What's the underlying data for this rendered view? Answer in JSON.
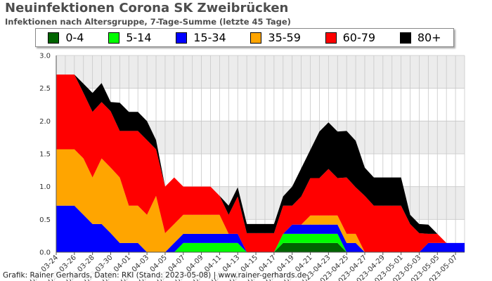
{
  "title": "Neuinfektionen Corona SK Zweibrücken",
  "subtitle": "Infektionen nach Altersgruppe, 7-Tage-Summe (letzte 45 Tage)",
  "credit": "Grafik: Rainer Gerhards, Daten: RKI (Stand: 2023-05-08) | www.rainer-gerhards.de",
  "legend": [
    {
      "label": "0-4",
      "color": "#006400"
    },
    {
      "label": "5-14",
      "color": "#00ff00"
    },
    {
      "label": "15-34",
      "color": "#0000ff"
    },
    {
      "label": "35-59",
      "color": "#ffa500"
    },
    {
      "label": "60-79",
      "color": "#ff0000"
    },
    {
      "label": "80+",
      "color": "#000000"
    }
  ],
  "chart_data": {
    "type": "area",
    "stacked": true,
    "title": "Neuinfektionen Corona SK Zweibrücken",
    "subtitle": "Infektionen nach Altersgruppe, 7-Tage-Summe (letzte 45 Tage)",
    "xlabel": "",
    "ylabel": "",
    "ylim": [
      0,
      3.0
    ],
    "yticks": [
      "0.0",
      "0.5",
      "1.0",
      "1.5",
      "2.0",
      "2.5",
      "3.0"
    ],
    "xticks": [
      "2023-03-24",
      "2023-03-26",
      "2023-03-28",
      "2023-03-30",
      "2023-04-01",
      "2023-04-03",
      "2023-04-05",
      "2023-04-07",
      "2023-04-09",
      "2023-04-11",
      "2023-04-13",
      "2023-04-15",
      "2023-04-17",
      "2023-04-19",
      "2023-04-21",
      "2023-04-23",
      "2023-04-25",
      "2023-04-27",
      "2023-04-29",
      "2023-05-01",
      "2023-05-03",
      "2023-05-05",
      "2023-05-07"
    ],
    "x": [
      "2023-03-24",
      "2023-03-25",
      "2023-03-26",
      "2023-03-27",
      "2023-03-28",
      "2023-03-29",
      "2023-03-30",
      "2023-03-31",
      "2023-04-01",
      "2023-04-02",
      "2023-04-03",
      "2023-04-04",
      "2023-04-05",
      "2023-04-06",
      "2023-04-07",
      "2023-04-08",
      "2023-04-09",
      "2023-04-10",
      "2023-04-11",
      "2023-04-12",
      "2023-04-13",
      "2023-04-14",
      "2023-04-15",
      "2023-04-16",
      "2023-04-17",
      "2023-04-18",
      "2023-04-19",
      "2023-04-20",
      "2023-04-21",
      "2023-04-22",
      "2023-04-23",
      "2023-04-24",
      "2023-04-25",
      "2023-04-26",
      "2023-04-27",
      "2023-04-28",
      "2023-04-29",
      "2023-04-30",
      "2023-05-01",
      "2023-05-02",
      "2023-05-03",
      "2023-05-04",
      "2023-05-05",
      "2023-05-06",
      "2023-05-07",
      "2023-05-08"
    ],
    "grid": true,
    "legend_position": "top",
    "series": [
      {
        "name": "0-4",
        "color": "#006400",
        "values": [
          0,
          0,
          0,
          0,
          0,
          0,
          0,
          0,
          0,
          0,
          0,
          0,
          0,
          0,
          0,
          0,
          0,
          0,
          0,
          0,
          0,
          0,
          0,
          0,
          0,
          0.14,
          0.14,
          0.14,
          0.14,
          0.14,
          0.14,
          0.14,
          0,
          0,
          0,
          0,
          0,
          0,
          0,
          0,
          0,
          0,
          0,
          0,
          0,
          0
        ]
      },
      {
        "name": "5-14",
        "color": "#00ff00",
        "values": [
          0,
          0,
          0,
          0,
          0,
          0,
          0,
          0,
          0,
          0,
          0,
          0,
          0,
          0,
          0.14,
          0.14,
          0.14,
          0.14,
          0.14,
          0.14,
          0.14,
          0,
          0,
          0,
          0,
          0.14,
          0.14,
          0.14,
          0.14,
          0.14,
          0.14,
          0.14,
          0,
          0,
          0,
          0,
          0,
          0,
          0,
          0,
          0,
          0,
          0,
          0,
          0,
          0
        ]
      },
      {
        "name": "15-34",
        "color": "#0000ff",
        "values": [
          0.71,
          0.71,
          0.71,
          0.57,
          0.43,
          0.43,
          0.29,
          0.14,
          0.14,
          0.14,
          0,
          0,
          0,
          0.14,
          0.14,
          0.14,
          0.14,
          0.14,
          0.14,
          0.14,
          0.14,
          0,
          0,
          0,
          0,
          0,
          0.14,
          0.14,
          0.14,
          0.14,
          0.14,
          0.14,
          0.14,
          0.14,
          0,
          0,
          0,
          0,
          0,
          0,
          0,
          0.14,
          0.14,
          0.14,
          0.14,
          0.14
        ]
      },
      {
        "name": "35-59",
        "color": "#ffa500",
        "values": [
          0.86,
          0.86,
          0.86,
          0.86,
          0.71,
          1.0,
          1.0,
          1.0,
          0.57,
          0.57,
          0.57,
          0.86,
          0.29,
          0.29,
          0.29,
          0.29,
          0.29,
          0.29,
          0.29,
          0,
          0,
          0,
          0,
          0,
          0,
          0,
          0,
          0,
          0.14,
          0.14,
          0.14,
          0.14,
          0.14,
          0.14,
          0,
          0,
          0,
          0,
          0,
          0,
          0,
          0,
          0,
          0,
          0,
          0
        ]
      },
      {
        "name": "60-79",
        "color": "#ff0000",
        "values": [
          1.14,
          1.14,
          1.14,
          1.0,
          1.0,
          0.86,
          0.86,
          0.71,
          1.14,
          1.14,
          1.14,
          0.71,
          0.71,
          0.71,
          0.43,
          0.43,
          0.43,
          0.43,
          0.29,
          0.29,
          0.57,
          0.29,
          0.29,
          0.29,
          0.29,
          0.43,
          0.29,
          0.43,
          0.57,
          0.57,
          0.71,
          0.57,
          0.86,
          0.71,
          0.86,
          0.71,
          0.71,
          0.71,
          0.71,
          0.43,
          0.29,
          0.14,
          0.14,
          0,
          0,
          0
        ]
      },
      {
        "name": "80+",
        "color": "#000000",
        "values": [
          0,
          0,
          0,
          0.14,
          0.29,
          0.29,
          0.14,
          0.43,
          0.29,
          0.29,
          0.29,
          0.14,
          0,
          0,
          0,
          0,
          0,
          0,
          0,
          0.14,
          0.14,
          0.14,
          0.14,
          0.14,
          0.14,
          0.14,
          0.29,
          0.43,
          0.43,
          0.71,
          0.71,
          0.71,
          0.71,
          0.71,
          0.43,
          0.43,
          0.43,
          0.43,
          0.43,
          0.14,
          0.14,
          0.14,
          0,
          0,
          0,
          0
        ]
      }
    ]
  }
}
